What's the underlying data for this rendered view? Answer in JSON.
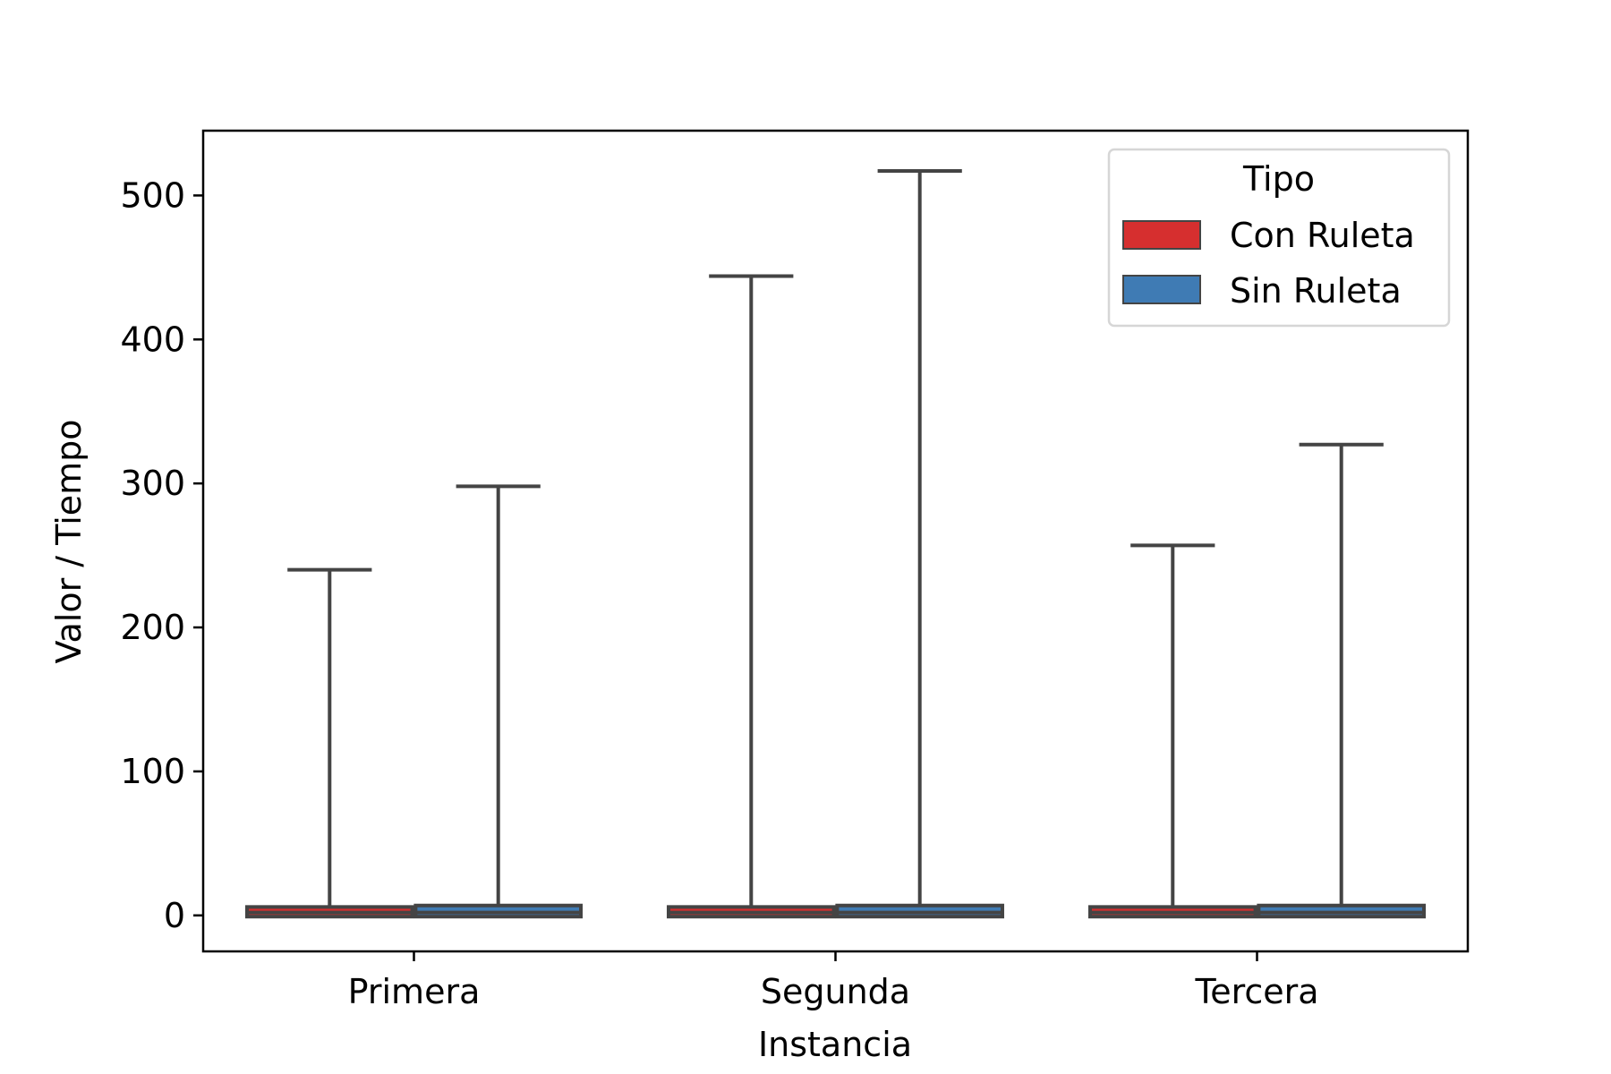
{
  "chart_data": {
    "type": "box",
    "title": "",
    "xlabel": "Instancia",
    "ylabel": "Valor / Tiempo",
    "categories": [
      "Primera",
      "Segunda",
      "Tercera"
    ],
    "ylim": [
      -25,
      545
    ],
    "yticks": [
      0,
      100,
      200,
      300,
      400,
      500
    ],
    "grid": false,
    "legend": {
      "title": "Tipo",
      "position": "top-right"
    },
    "series": [
      {
        "name": "Con Ruleta",
        "color": "#d62f2f",
        "boxes": [
          {
            "min": 0,
            "q1": 1,
            "median": 2,
            "q3": 4,
            "max": 240
          },
          {
            "min": 0,
            "q1": 1,
            "median": 2,
            "q3": 4,
            "max": 444
          },
          {
            "min": 0,
            "q1": 1,
            "median": 2,
            "q3": 4,
            "max": 257
          }
        ]
      },
      {
        "name": "Sin Ruleta",
        "color": "#3f7bb4",
        "boxes": [
          {
            "min": 0,
            "q1": 1,
            "median": 2,
            "q3": 5,
            "max": 298
          },
          {
            "min": 0,
            "q1": 1,
            "median": 2,
            "q3": 5,
            "max": 517
          },
          {
            "min": 0,
            "q1": 1,
            "median": 2,
            "q3": 5,
            "max": 327
          }
        ]
      }
    ]
  }
}
